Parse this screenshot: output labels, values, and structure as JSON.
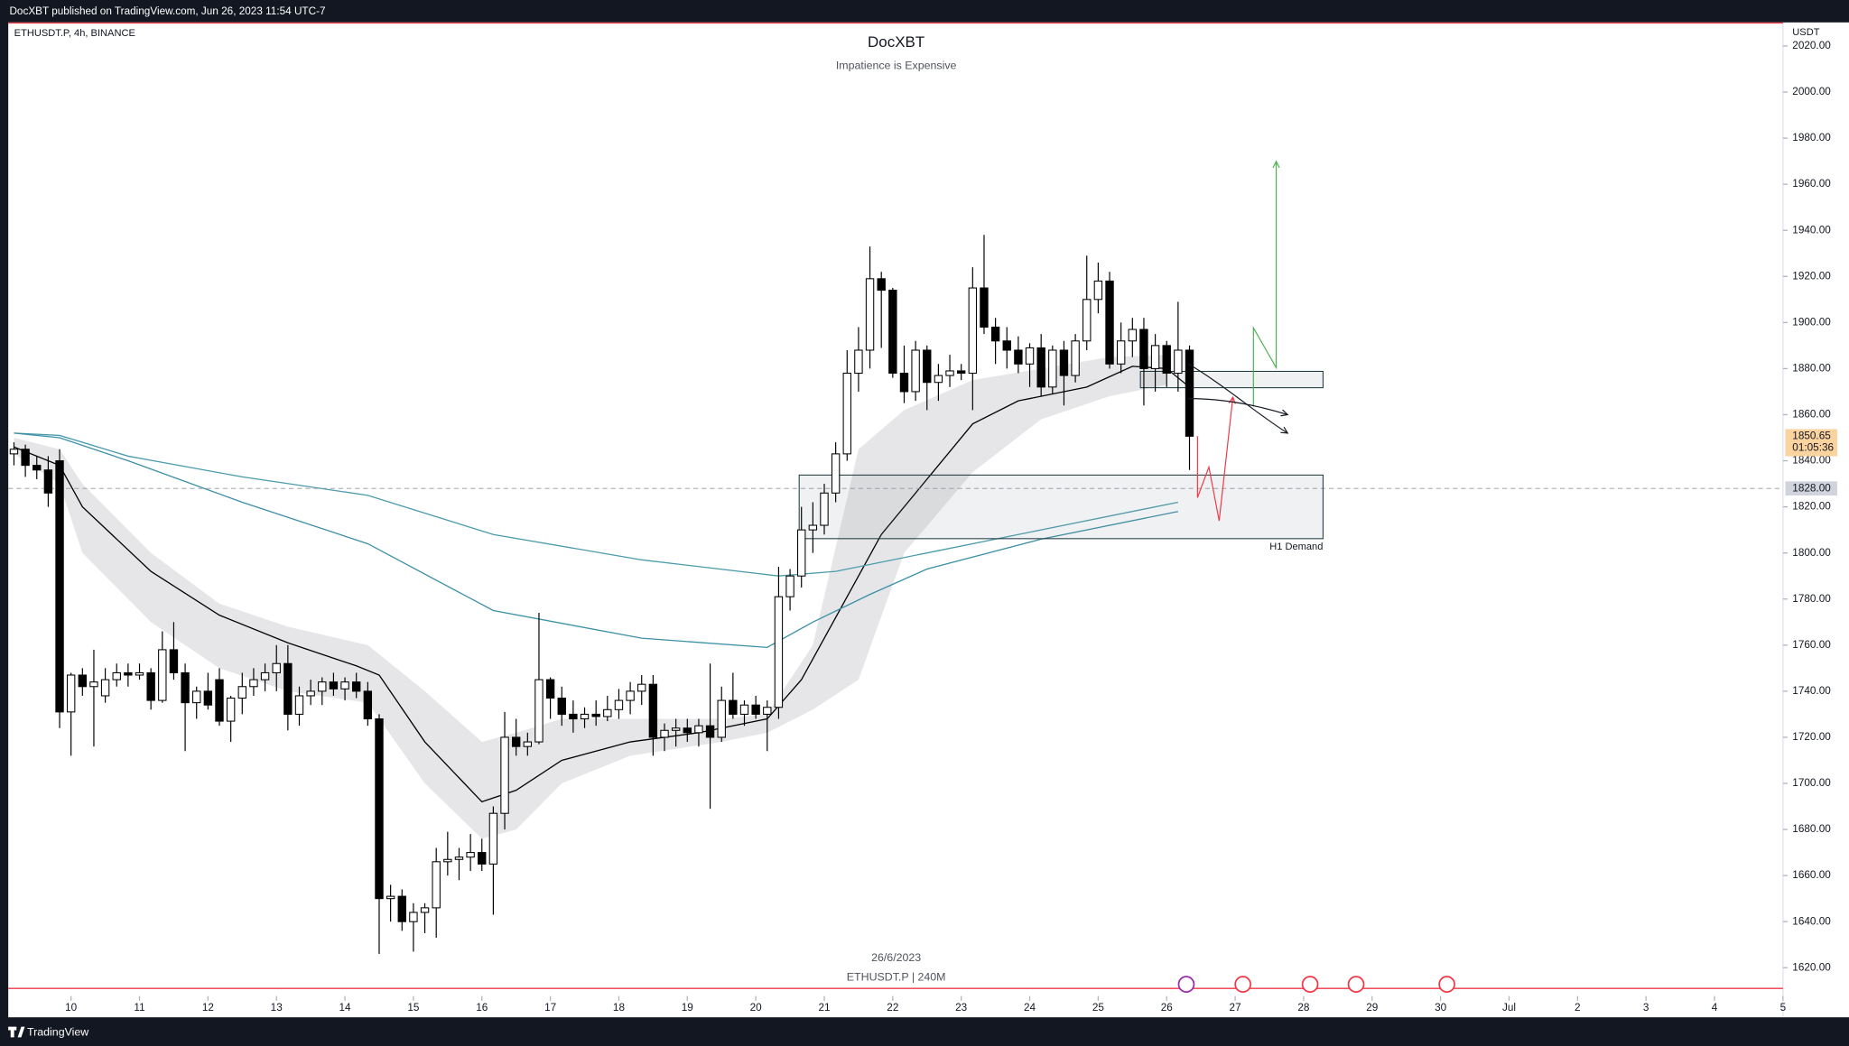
{
  "header": "DocXBT published on TradingView.com, Jun 26, 2023 11:54 UTC-7",
  "footer": "TradingView",
  "chart_data": {
    "type": "candlestick",
    "title": "DocXBT",
    "subtitle": "Impatience is Expensive",
    "symbol": "ETHUSDT.P, 4h, BINANCE",
    "currency": "USDT",
    "watermark": [
      "26/6/2023",
      "ETHUSDT.P | 240M"
    ],
    "up_color": "#ffffff",
    "down_color": "#000000",
    "xlim": [
      -0.5,
      155
    ],
    "ylim": [
      1607.7,
      2028.7
    ],
    "xticks": [
      {
        "value": 5,
        "label": "10"
      },
      {
        "value": 11,
        "label": "11"
      },
      {
        "value": 17,
        "label": "12"
      },
      {
        "value": 23,
        "label": "13"
      },
      {
        "value": 29,
        "label": "14"
      },
      {
        "value": 35,
        "label": "15"
      },
      {
        "value": 41,
        "label": "16"
      },
      {
        "value": 47,
        "label": "17"
      },
      {
        "value": 53,
        "label": "18"
      },
      {
        "value": 59,
        "label": "19"
      },
      {
        "value": 65,
        "label": "20"
      },
      {
        "value": 71,
        "label": "21"
      },
      {
        "value": 77,
        "label": "22"
      },
      {
        "value": 83,
        "label": "23"
      },
      {
        "value": 89,
        "label": "24"
      },
      {
        "value": 95,
        "label": "25"
      },
      {
        "value": 101,
        "label": "26"
      },
      {
        "value": 107,
        "label": "27"
      },
      {
        "value": 113,
        "label": "28"
      },
      {
        "value": 119,
        "label": "29"
      },
      {
        "value": 125,
        "label": "30"
      },
      {
        "value": 131,
        "label": "Jul"
      },
      {
        "value": 137,
        "label": "2"
      },
      {
        "value": 143,
        "label": "3"
      },
      {
        "value": 149,
        "label": "4"
      },
      {
        "value": 155,
        "label": "5"
      }
    ],
    "yticks": [
      {
        "value": 1620,
        "label": "1620.00"
      },
      {
        "value": 1640,
        "label": "1640.00"
      },
      {
        "value": 1660,
        "label": "1660.00"
      },
      {
        "value": 1680,
        "label": "1680.00"
      },
      {
        "value": 1700,
        "label": "1700.00"
      },
      {
        "value": 1720,
        "label": "1720.00"
      },
      {
        "value": 1740,
        "label": "1740.00"
      },
      {
        "value": 1760,
        "label": "1760.00"
      },
      {
        "value": 1780,
        "label": "1780.00"
      },
      {
        "value": 1800,
        "label": "1800.00"
      },
      {
        "value": 1820,
        "label": "1820.00"
      },
      {
        "value": 1840,
        "label": "1840.00"
      },
      {
        "value": 1860,
        "label": "1860.00"
      },
      {
        "value": 1880,
        "label": "1880.00"
      },
      {
        "value": 1900,
        "label": "1900.00"
      },
      {
        "value": 1920,
        "label": "1920.00"
      },
      {
        "value": 1940,
        "label": "1940.00"
      },
      {
        "value": 1960,
        "label": "1960.00"
      },
      {
        "value": 1980,
        "label": "1980.00"
      },
      {
        "value": 2000,
        "label": "2000.00"
      },
      {
        "value": 2020,
        "label": "2020.00"
      }
    ],
    "ohlc": [
      [
        1843,
        1848,
        1838,
        1845
      ],
      [
        1845,
        1847,
        1833,
        1838
      ],
      [
        1838,
        1842,
        1832,
        1836
      ],
      [
        1836,
        1842,
        1820,
        1826
      ],
      [
        1840,
        1845,
        1724,
        1731
      ],
      [
        1731,
        1748,
        1712,
        1747
      ],
      [
        1747,
        1750,
        1738,
        1742
      ],
      [
        1742,
        1758,
        1716,
        1744
      ],
      [
        1738,
        1750,
        1735,
        1745
      ],
      [
        1745,
        1752,
        1742,
        1748
      ],
      [
        1748,
        1752,
        1742,
        1747
      ],
      [
        1747,
        1752,
        1745,
        1748
      ],
      [
        1748,
        1750,
        1732,
        1736
      ],
      [
        1736,
        1766,
        1735,
        1758
      ],
      [
        1758,
        1770,
        1745,
        1748
      ],
      [
        1748,
        1752,
        1714,
        1735
      ],
      [
        1735,
        1742,
        1728,
        1740
      ],
      [
        1740,
        1748,
        1732,
        1734
      ],
      [
        1745,
        1750,
        1725,
        1727
      ],
      [
        1727,
        1738,
        1718,
        1737
      ],
      [
        1737,
        1748,
        1730,
        1742
      ],
      [
        1742,
        1750,
        1738,
        1745
      ],
      [
        1745,
        1752,
        1740,
        1748
      ],
      [
        1748,
        1760,
        1740,
        1752
      ],
      [
        1752,
        1760,
        1723,
        1730
      ],
      [
        1730,
        1742,
        1725,
        1738
      ],
      [
        1738,
        1745,
        1734,
        1740
      ],
      [
        1740,
        1746,
        1734,
        1744
      ],
      [
        1744,
        1748,
        1738,
        1741
      ],
      [
        1741,
        1746,
        1736,
        1744
      ],
      [
        1744,
        1748,
        1737,
        1740
      ],
      [
        1740,
        1744,
        1725,
        1728
      ],
      [
        1728,
        1730,
        1626,
        1650
      ],
      [
        1650,
        1656,
        1640,
        1651
      ],
      [
        1651,
        1654,
        1636,
        1640
      ],
      [
        1640,
        1648,
        1627,
        1644
      ],
      [
        1644,
        1648,
        1635,
        1646
      ],
      [
        1646,
        1672,
        1633,
        1666
      ],
      [
        1666,
        1679,
        1660,
        1667
      ],
      [
        1667,
        1672,
        1658,
        1668
      ],
      [
        1668,
        1678,
        1662,
        1670
      ],
      [
        1670,
        1676,
        1662,
        1665
      ],
      [
        1665,
        1690,
        1643,
        1687
      ],
      [
        1687,
        1731,
        1680,
        1720
      ],
      [
        1720,
        1728,
        1712,
        1716
      ],
      [
        1716,
        1722,
        1712,
        1718
      ],
      [
        1718,
        1774,
        1717,
        1745
      ],
      [
        1745,
        1746,
        1728,
        1737
      ],
      [
        1737,
        1742,
        1725,
        1730
      ],
      [
        1730,
        1736,
        1722,
        1728
      ],
      [
        1728,
        1733,
        1724,
        1730
      ],
      [
        1730,
        1736,
        1725,
        1729
      ],
      [
        1729,
        1738,
        1727,
        1732
      ],
      [
        1732,
        1741,
        1728,
        1736
      ],
      [
        1736,
        1744,
        1730,
        1740
      ],
      [
        1740,
        1747,
        1734,
        1743
      ],
      [
        1743,
        1747,
        1712,
        1720
      ],
      [
        1720,
        1726,
        1714,
        1723
      ],
      [
        1723,
        1728,
        1716,
        1724
      ],
      [
        1724,
        1728,
        1718,
        1722
      ],
      [
        1722,
        1728,
        1716,
        1725
      ],
      [
        1725,
        1752,
        1689,
        1720
      ],
      [
        1720,
        1742,
        1718,
        1736
      ],
      [
        1736,
        1748,
        1728,
        1730
      ],
      [
        1730,
        1736,
        1725,
        1734
      ],
      [
        1734,
        1738,
        1728,
        1730
      ],
      [
        1730,
        1736,
        1714,
        1733
      ],
      [
        1733,
        1794,
        1728,
        1781
      ],
      [
        1781,
        1793,
        1775,
        1790
      ],
      [
        1790,
        1820,
        1785,
        1810
      ],
      [
        1810,
        1822,
        1800,
        1812
      ],
      [
        1812,
        1830,
        1808,
        1826
      ],
      [
        1826,
        1848,
        1822,
        1843
      ],
      [
        1843,
        1888,
        1840,
        1878
      ],
      [
        1878,
        1898,
        1870,
        1888
      ],
      [
        1888,
        1933,
        1880,
        1919
      ],
      [
        1919,
        1922,
        1889,
        1914
      ],
      [
        1914,
        1915,
        1876,
        1878
      ],
      [
        1878,
        1890,
        1865,
        1870
      ],
      [
        1870,
        1892,
        1866,
        1888
      ],
      [
        1888,
        1890,
        1862,
        1874
      ],
      [
        1874,
        1882,
        1866,
        1877
      ],
      [
        1877,
        1886,
        1872,
        1879
      ],
      [
        1879,
        1882,
        1875,
        1878
      ],
      [
        1878,
        1924,
        1862,
        1915
      ],
      [
        1915,
        1938,
        1895,
        1898
      ],
      [
        1898,
        1902,
        1882,
        1892
      ],
      [
        1892,
        1898,
        1880,
        1888
      ],
      [
        1888,
        1894,
        1878,
        1882
      ],
      [
        1882,
        1891,
        1872,
        1889
      ],
      [
        1889,
        1895,
        1868,
        1872
      ],
      [
        1872,
        1890,
        1869,
        1888
      ],
      [
        1888,
        1892,
        1864,
        1877
      ],
      [
        1877,
        1895,
        1874,
        1892
      ],
      [
        1892,
        1929,
        1888,
        1910
      ],
      [
        1910,
        1926,
        1904,
        1918
      ],
      [
        1918,
        1922,
        1880,
        1882
      ],
      [
        1882,
        1900,
        1878,
        1892
      ],
      [
        1892,
        1902,
        1885,
        1897
      ],
      [
        1897,
        1902,
        1864,
        1880
      ],
      [
        1880,
        1895,
        1870,
        1890
      ],
      [
        1890,
        1892,
        1872,
        1878
      ],
      [
        1878,
        1909,
        1870,
        1888
      ],
      [
        1888,
        1890,
        1836,
        1850.65
      ]
    ],
    "band": {
      "color": "#e6e6e8",
      "x": [
        0,
        4,
        6,
        12,
        18,
        24,
        31,
        36,
        41,
        44,
        48,
        54,
        62,
        66,
        70,
        74,
        78,
        84,
        90,
        96,
        101
      ],
      "upper": [
        1850,
        1845,
        1830,
        1800,
        1778,
        1768,
        1760,
        1740,
        1718,
        1722,
        1728,
        1728,
        1728,
        1730,
        1760,
        1845,
        1862,
        1875,
        1880,
        1885,
        1886
      ],
      "lower": [
        1843,
        1830,
        1800,
        1770,
        1750,
        1740,
        1735,
        1700,
        1676,
        1680,
        1700,
        1712,
        1718,
        1722,
        1732,
        1745,
        1800,
        1835,
        1858,
        1868,
        1873
      ]
    },
    "indicators": [
      {
        "color": "#000000",
        "x": [
          0,
          4,
          6,
          12,
          18,
          24,
          30,
          32,
          36,
          41,
          44,
          48,
          54,
          60,
          66,
          69,
          72,
          76,
          80,
          84,
          88,
          94,
          98,
          101,
          103
        ],
        "y": [
          1846,
          1838,
          1820,
          1792,
          1773,
          1761,
          1751,
          1747,
          1718,
          1692,
          1697,
          1710,
          1718,
          1722,
          1728,
          1745,
          1772,
          1808,
          1832,
          1856,
          1866,
          1872,
          1881,
          1880,
          1872
        ]
      },
      {
        "color": "#4a9bab",
        "x": [
          0,
          4,
          10,
          20,
          31,
          42,
          55,
          67,
          72,
          80,
          90,
          102
        ],
        "y": [
          1852,
          1851,
          1842,
          1833,
          1825,
          1808,
          1797,
          1790,
          1792,
          1800,
          1810,
          1822
        ]
      },
      {
        "color": "#3b8fa6",
        "x": [
          0,
          4,
          10,
          20,
          31,
          42,
          55,
          66,
          70,
          75,
          80,
          90,
          102
        ],
        "y": [
          1852,
          1850,
          1840,
          1822,
          1804,
          1775,
          1763,
          1759,
          1770,
          1782,
          1793,
          1806,
          1818
        ]
      }
    ],
    "zones": [
      {
        "label": "H1 Demand",
        "x": [
          68.8,
          114.7
        ],
        "y": [
          1806.2,
          1833.8
        ]
      },
      {
        "x": [
          98.7,
          114.7
        ],
        "y": [
          1871.7,
          1878.8
        ]
      }
    ],
    "paths": [
      {
        "color": "#4caf50",
        "x": [
          108.6,
          108.6,
          110.6,
          110.6
        ],
        "y": [
          1863.5,
          1897.7,
          1880.4,
          1969.9
        ]
      },
      {
        "color": "#f23645",
        "x": [
          103.7,
          103.7,
          104.7,
          105.6,
          106.8
        ],
        "y": [
          1850.7,
          1824,
          1837.3,
          1813.9,
          1867.6
        ]
      },
      {
        "color": "#131722",
        "x": [
          102.9,
          106,
          109,
          111.6
        ],
        "y": [
          1882,
          1873,
          1860,
          1852
        ]
      },
      {
        "color": "#131722",
        "x": [
          102.9,
          106,
          109,
          111.6
        ],
        "y": [
          1867,
          1867,
          1864,
          1860
        ]
      }
    ],
    "last_price": 1850.65,
    "countdown": "01:05:36",
    "price_line": {
      "value": 1828,
      "label": "1828.00"
    }
  }
}
